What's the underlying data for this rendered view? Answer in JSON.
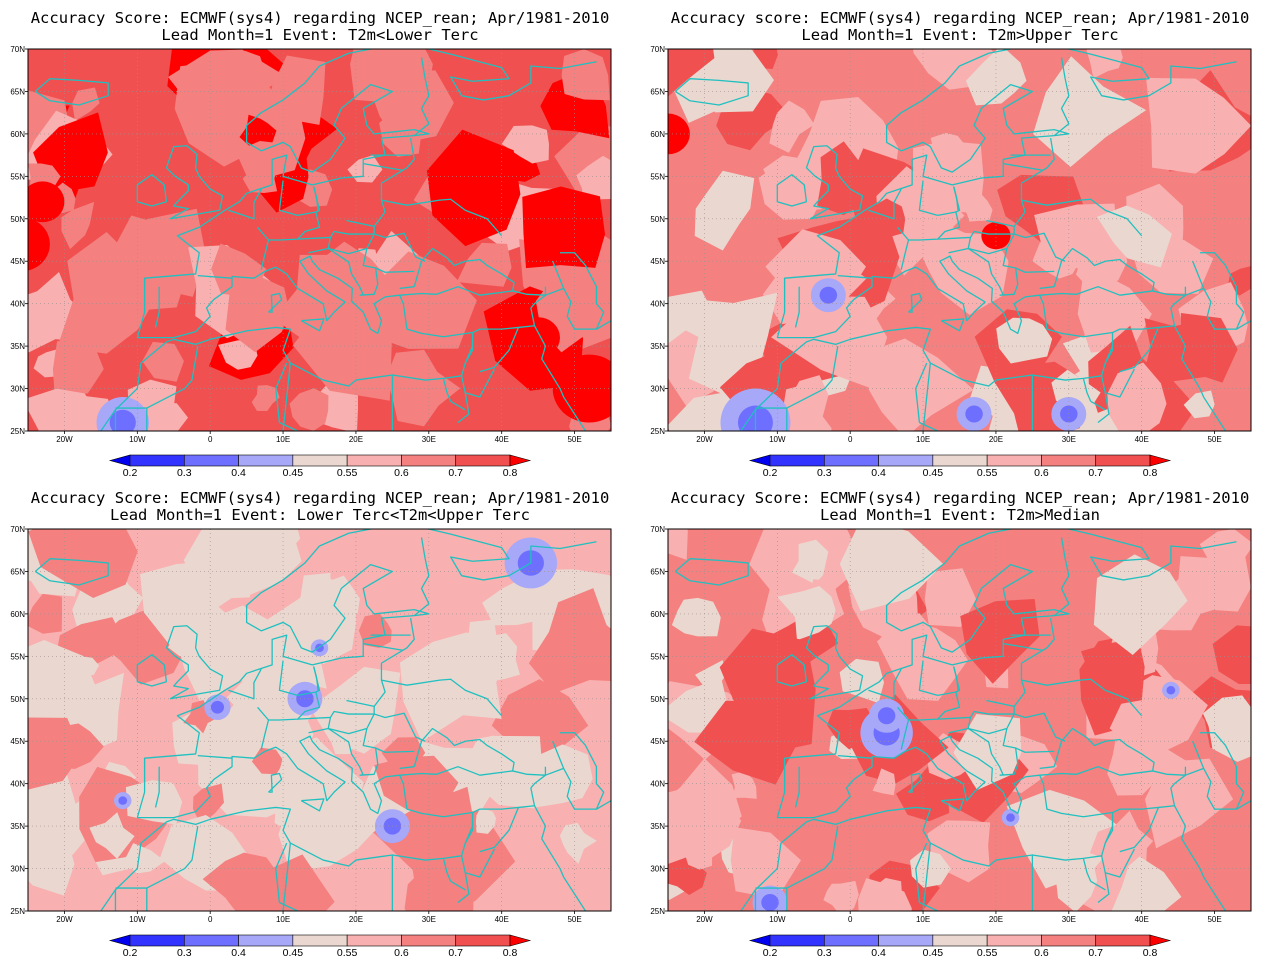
{
  "colorbar": {
    "levels": [
      "0.2",
      "0.3",
      "0.4",
      "0.45",
      "0.55",
      "0.6",
      "0.7",
      "0.8"
    ],
    "colors": [
      "#0000ee",
      "#3333ff",
      "#6f6fff",
      "#a8a8f8",
      "#ead8d0",
      "#f8b0b0",
      "#f48080",
      "#f05050",
      "#ff0000"
    ]
  },
  "map": {
    "lon_labels": [
      "20W",
      "10W",
      "0",
      "10E",
      "20E",
      "30E",
      "40E",
      "50E"
    ],
    "lat_labels": [
      "70N",
      "65N",
      "60N",
      "55N",
      "50N",
      "45N",
      "40N",
      "35N",
      "30N",
      "25N"
    ],
    "coast_color": "#20c0c0"
  },
  "panels": [
    {
      "title": "Accuracy Score: ECMWF(sys4) regarding NCEP_rean; Apr/1981-2010",
      "subtitle": "Lead Month=1 Event: T2m<Lower Terc",
      "dominant_level": 7,
      "blue_spots": [
        [
          -12,
          26,
          3
        ]
      ],
      "deep_spots": [
        [
          -23,
          52,
          3
        ],
        [
          -26,
          47,
          4
        ],
        [
          52,
          30,
          5
        ],
        [
          45,
          36,
          3
        ]
      ]
    },
    {
      "title": "Accuracy score: ECMWF(sys4) regarding NCEP_rean; Apr/1981-2010",
      "subtitle": "Lead Month=1 Event: T2m>Upper Terc",
      "dominant_level": 6,
      "blue_spots": [
        [
          -13,
          26,
          4
        ],
        [
          -3,
          41,
          2
        ],
        [
          30,
          27,
          2
        ],
        [
          17,
          27,
          2
        ]
      ],
      "deep_spots": [
        [
          -25,
          60,
          3
        ],
        [
          20,
          48,
          2
        ]
      ]
    },
    {
      "title": "Accuracy Score: ECMWF(sys4) regarding NCEP_rean; Apr/1981-2010",
      "subtitle": "Lead Month=1 Event: Lower Terc<T2m<Upper Terc",
      "dominant_level": 5,
      "blue_spots": [
        [
          13,
          50,
          2
        ],
        [
          1,
          49,
          1.5
        ],
        [
          -12,
          38,
          1
        ],
        [
          25,
          35,
          2
        ],
        [
          44,
          66,
          3
        ],
        [
          15,
          56,
          1
        ]
      ],
      "deep_spots": []
    },
    {
      "title": "Accuracy Score: ECMWF(sys4) regarding NCEP_rean; Apr/1981-2010",
      "subtitle": "Lead Month=1 Event: T2m>Median",
      "dominant_level": 6,
      "blue_spots": [
        [
          5,
          46,
          3
        ],
        [
          -11,
          26,
          2
        ],
        [
          22,
          36,
          1
        ],
        [
          44,
          51,
          1
        ],
        [
          5,
          48,
          2
        ]
      ],
      "deep_spots": []
    }
  ]
}
